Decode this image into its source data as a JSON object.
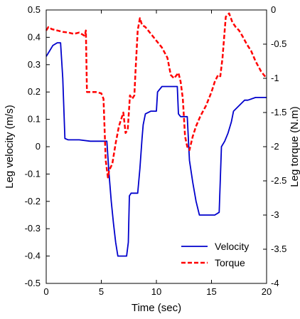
{
  "chart_data": {
    "type": "line",
    "title": "",
    "xlabel": "Time (sec)",
    "ylabel_left": "Leg velocity (m/s)",
    "ylabel_right": "Leg torque  (N.m)",
    "xlim": [
      0,
      20
    ],
    "ylim_left": [
      -0.5,
      0.5
    ],
    "ylim_right": [
      -4,
      0
    ],
    "x_ticks": [
      "0",
      "5",
      "10",
      "15",
      "20"
    ],
    "y_left_ticks": [
      "0.5",
      "0.4",
      "0.3",
      "0.2",
      "0.1",
      "0",
      "-0.1",
      "-0.2",
      "-0.3",
      "-0.4",
      "-0.5"
    ],
    "y_right_ticks": [
      "0",
      "-0.5",
      "-1",
      "-1.5",
      "-2",
      "-2.5",
      "-3",
      "-3.5",
      "-4"
    ],
    "grid": false,
    "legend_position": "bottom-right",
    "series": [
      {
        "name": "Velocity",
        "axis": "left",
        "color": "#0000cc",
        "style": "solid",
        "x": [
          0,
          0.3,
          0.6,
          1.0,
          1.3,
          1.5,
          1.7,
          2.0,
          3.0,
          4.0,
          5.0,
          5.5,
          5.7,
          5.9,
          6.1,
          6.3,
          6.5,
          6.7,
          6.9,
          7.1,
          7.3,
          7.45,
          7.55,
          7.7,
          8.0,
          8.3,
          8.5,
          8.7,
          8.8,
          9.0,
          9.5,
          10.0,
          10.1,
          10.5,
          11.0,
          11.5,
          11.9,
          12.0,
          12.2,
          12.5,
          12.8,
          13.0,
          13.3,
          13.6,
          13.9,
          14.3,
          14.8,
          15.3,
          15.7,
          15.9,
          16.2,
          16.5,
          16.8,
          17.0,
          17.5,
          18.0,
          18.3,
          19.0,
          20.0
        ],
        "y": [
          0.33,
          0.35,
          0.37,
          0.38,
          0.38,
          0.25,
          0.03,
          0.025,
          0.025,
          0.02,
          0.02,
          0.02,
          -0.1,
          -0.2,
          -0.28,
          -0.35,
          -0.4,
          -0.4,
          -0.4,
          -0.4,
          -0.4,
          -0.35,
          -0.18,
          -0.17,
          -0.17,
          -0.17,
          -0.08,
          0.03,
          0.08,
          0.12,
          0.13,
          0.13,
          0.2,
          0.22,
          0.22,
          0.22,
          0.22,
          0.12,
          0.11,
          0.11,
          0.11,
          -0.05,
          -0.13,
          -0.2,
          -0.25,
          -0.25,
          -0.25,
          -0.25,
          -0.24,
          0.0,
          0.02,
          0.05,
          0.09,
          0.13,
          0.15,
          0.17,
          0.17,
          0.18,
          0.18
        ]
      },
      {
        "name": "Torque",
        "axis": "right",
        "color": "#ff0000",
        "style": "dashed",
        "x": [
          0,
          0.2,
          0.5,
          1.0,
          1.5,
          2.0,
          2.5,
          3.0,
          3.5,
          3.6,
          3.7,
          4.0,
          4.5,
          5.0,
          5.2,
          5.4,
          5.6,
          5.7,
          6.0,
          6.3,
          6.6,
          6.8,
          7.0,
          7.2,
          7.4,
          7.6,
          7.8,
          8.0,
          8.1,
          8.3,
          8.5,
          8.7,
          9.0,
          9.5,
          10.0,
          10.5,
          11.0,
          11.3,
          11.6,
          12.0,
          12.2,
          12.4,
          12.6,
          12.8,
          13.0,
          13.3,
          13.6,
          14.0,
          14.5,
          15.0,
          15.3,
          15.6,
          15.8,
          16.0,
          16.3,
          16.6,
          16.9,
          17.2,
          17.5,
          17.8,
          18.2,
          18.6,
          19.0,
          19.5,
          20.0
        ],
        "y": [
          -0.3,
          -0.25,
          -0.28,
          -0.3,
          -0.32,
          -0.33,
          -0.35,
          -0.33,
          -0.38,
          -0.3,
          -1.2,
          -1.2,
          -1.2,
          -1.22,
          -1.3,
          -2.2,
          -2.45,
          -2.35,
          -2.25,
          -1.95,
          -1.7,
          -1.6,
          -1.5,
          -1.8,
          -1.75,
          -1.25,
          -1.3,
          -1.25,
          -0.9,
          -0.3,
          -0.12,
          -0.22,
          -0.25,
          -0.35,
          -0.45,
          -0.55,
          -0.7,
          -0.95,
          -1.0,
          -0.92,
          -1.05,
          -1.3,
          -1.85,
          -2.0,
          -2.05,
          -1.85,
          -1.7,
          -1.55,
          -1.4,
          -1.2,
          -1.05,
          -0.95,
          -0.97,
          -0.7,
          -0.1,
          -0.05,
          -0.18,
          -0.25,
          -0.3,
          -0.38,
          -0.5,
          -0.6,
          -0.75,
          -0.9,
          -1.0
        ]
      }
    ]
  }
}
